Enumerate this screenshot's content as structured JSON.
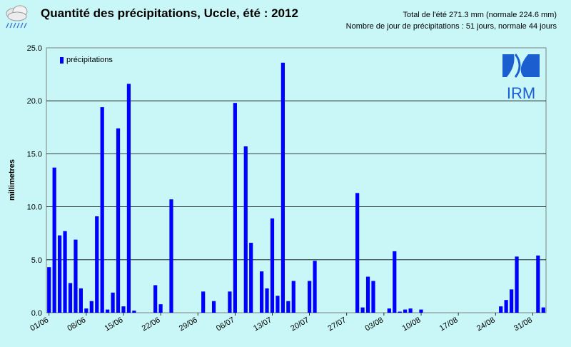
{
  "header": {
    "title": "Quantité des précipitations, Uccle, été : 2012",
    "summary_line1": "Total de l'été 271.3 mm (normale 224.6 mm)",
    "summary_line2": "Nombre de jour de précipitations : 51 jours, normale 44 jours"
  },
  "logo": {
    "text": "IRM",
    "color": "#1a5ed0"
  },
  "colors": {
    "bar": "#0000ff",
    "background": "#c9f7f7",
    "plot_background": "#c9f7f7"
  },
  "chart_data": {
    "type": "bar",
    "title": "Quantité des précipitations, Uccle, été : 2012",
    "xlabel": "",
    "ylabel": "millimetres",
    "ylim": [
      0,
      25
    ],
    "y_ticks": [
      "0.0",
      "5.0",
      "10.0",
      "15.0",
      "20.0",
      "25.0"
    ],
    "x_tick_labels": [
      "01/06",
      "08/06",
      "15/06",
      "22/06",
      "29/06",
      "06/07",
      "13/07",
      "20/07",
      "27/07",
      "03/08",
      "10/08",
      "17/08",
      "24/08",
      "31/08"
    ],
    "grid": true,
    "legend": {
      "position": "top-left",
      "entries": [
        "précipitations"
      ]
    },
    "series": [
      {
        "name": "précipitations",
        "values": [
          4.3,
          13.7,
          7.3,
          7.7,
          2.8,
          6.9,
          2.3,
          0.4,
          1.1,
          9.1,
          19.4,
          0.3,
          1.9,
          17.4,
          0.6,
          21.6,
          0.2,
          0,
          0,
          0,
          2.6,
          0.8,
          0,
          10.7,
          0,
          0,
          0,
          0,
          0,
          2.0,
          0,
          1.1,
          0,
          0,
          2.0,
          19.8,
          0,
          15.7,
          6.6,
          0,
          3.9,
          2.3,
          8.9,
          1.6,
          23.6,
          1.1,
          3.0,
          0,
          0,
          3.0,
          4.9,
          0,
          0,
          0,
          0,
          0,
          0,
          0,
          11.3,
          0.5,
          3.4,
          3.0,
          0,
          0,
          0.4,
          5.8,
          0.1,
          0.3,
          0.4,
          0,
          0.3,
          0,
          0,
          0,
          0,
          0,
          0,
          0,
          0,
          0,
          0,
          0,
          0,
          0,
          0,
          0.6,
          1.2,
          2.2,
          5.3,
          0,
          0,
          0,
          5.4,
          0.5
        ]
      }
    ]
  }
}
